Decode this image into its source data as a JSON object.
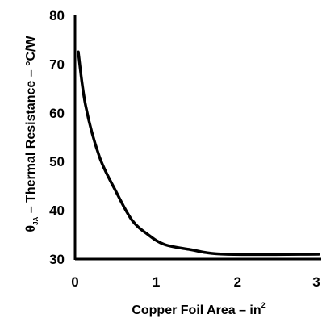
{
  "chart_data": {
    "type": "line",
    "xlabel": "Copper Foil Area – in",
    "xlabel_superscript": "2",
    "ylabel_symbol": "θ",
    "ylabel_subscript": "JA",
    "ylabel": " – Thermal Resistance – °C/W",
    "xlim": [
      0,
      3
    ],
    "ylim": [
      30,
      80
    ],
    "x_ticks": [
      "0",
      "1",
      "2",
      "3"
    ],
    "y_ticks": [
      "30",
      "40",
      "50",
      "60",
      "70",
      "80"
    ],
    "grid": false,
    "series": [
      {
        "color": "#000000",
        "x": [
          0.04,
          0.13,
          0.3,
          0.5,
          0.7,
          0.9,
          1.1,
          1.4,
          1.85,
          3.0
        ],
        "y": [
          72.5,
          61.5,
          51,
          44,
          38,
          35,
          33,
          32,
          31,
          31
        ]
      }
    ]
  }
}
